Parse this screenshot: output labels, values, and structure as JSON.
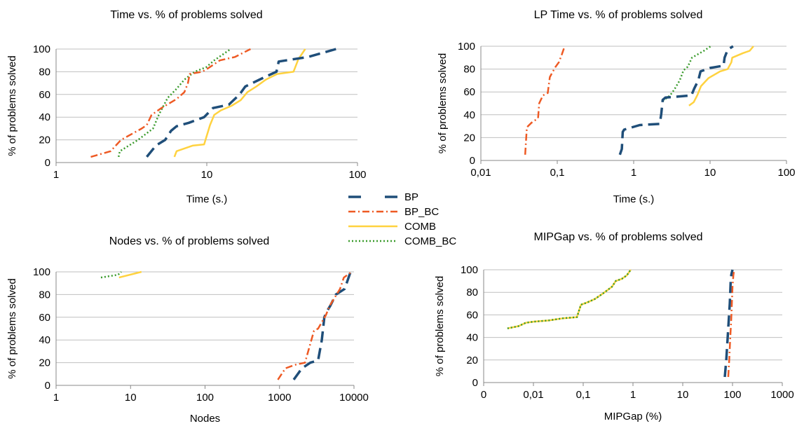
{
  "colors": {
    "BP": "#1f4e79",
    "BP_BC": "#ee5a24",
    "COMB": "#ffd23f",
    "COMB_BC": "#3a9b2c",
    "grid": "#bfbfbf"
  },
  "legend": {
    "placement": "center",
    "entries": [
      {
        "name": "BP",
        "color": "#1f4e79",
        "dash": "dash"
      },
      {
        "name": "BP_BC",
        "color": "#ee5a24",
        "dash": "dashdot"
      },
      {
        "name": "COMB",
        "color": "#ffd23f",
        "dash": "solid"
      },
      {
        "name": "COMB_BC",
        "color": "#3a9b2c",
        "dash": "dot"
      }
    ]
  },
  "chart_data": [
    {
      "type": "line",
      "title": "Time vs. % of problems solved",
      "xlabel": "Time (s.)",
      "ylabel": "% of problems solved",
      "xscale": "log",
      "xlim": [
        1,
        100
      ],
      "ylim": [
        0,
        100
      ],
      "grid": true,
      "xticks": [
        1,
        10,
        100
      ],
      "xtick_labels": [
        "1",
        "10",
        "100"
      ],
      "yticks": [
        0,
        20,
        40,
        60,
        80,
        100
      ],
      "ytick_labels": [
        "0",
        "20",
        "40",
        "60",
        "80",
        "100"
      ],
      "series": [
        {
          "name": "BP",
          "x": [
            4.0,
            4.6,
            5.3,
            5.8,
            6.3,
            7.6,
            9.6,
            11,
            14,
            16.5,
            18,
            24,
            29,
            30,
            47,
            72
          ],
          "y": [
            5,
            15,
            20,
            28,
            32,
            35,
            40,
            48,
            51,
            60,
            67,
            75,
            80,
            89,
            93,
            100
          ]
        },
        {
          "name": "BP_BC",
          "x": [
            1.7,
            2.3,
            2.7,
            3.7,
            4.0,
            4.3,
            5.0,
            6.3,
            7.1,
            7.5,
            7.7,
            9.3,
            10.2,
            12.2,
            15.4,
            19.5
          ],
          "y": [
            5,
            10,
            20,
            30,
            33,
            42,
            48,
            56,
            62,
            70,
            78,
            80,
            83,
            90,
            93,
            100
          ]
        },
        {
          "name": "COMB",
          "x": [
            6.1,
            6.3,
            8.1,
            9.6,
            10.5,
            11.2,
            12.4,
            14.6,
            16.8,
            18.6,
            21.3,
            24.6,
            29.3,
            37.6,
            40.5,
            45.0
          ],
          "y": [
            5,
            10,
            15,
            16,
            33,
            42,
            46,
            50,
            55,
            62,
            67,
            73,
            78,
            80,
            91,
            100
          ]
        },
        {
          "name": "COMB_BC",
          "x": [
            2.6,
            2.65,
            3.5,
            4.4,
            4.8,
            5.5,
            6.3,
            7.1,
            8.3,
            9.9,
            11.2,
            14.4
          ],
          "y": [
            5,
            10,
            20,
            30,
            42,
            57,
            65,
            73,
            80,
            84,
            90,
            100
          ]
        }
      ]
    },
    {
      "type": "line",
      "title": "LP Time vs. % of problems solved",
      "xlabel": "Time (s.)",
      "ylabel": "% of problems solved",
      "xscale": "log",
      "xlim": [
        0.01,
        100
      ],
      "ylim": [
        0,
        100
      ],
      "grid": true,
      "xticks": [
        0.01,
        0.1,
        1,
        10,
        100
      ],
      "xtick_labels": [
        "0,01",
        "0,1",
        "1",
        "10",
        "100"
      ],
      "yticks": [
        0,
        20,
        40,
        60,
        80,
        100
      ],
      "ytick_labels": [
        "0",
        "20",
        "40",
        "60",
        "80",
        "100"
      ],
      "series": [
        {
          "name": "BP",
          "x": [
            0.66,
            0.7,
            0.72,
            0.75,
            1.2,
            2.2,
            2.3,
            2.4,
            2.6,
            5.7,
            6.2,
            7.0,
            7.5,
            10.0,
            15.0,
            15.5,
            17.0,
            20.0
          ],
          "y": [
            5,
            10,
            25,
            27,
            31,
            32,
            41,
            53,
            55,
            57,
            63,
            70,
            78,
            81,
            83,
            90,
            97,
            100
          ]
        },
        {
          "name": "BP_BC",
          "x": [
            0.038,
            0.04,
            0.046,
            0.056,
            0.058,
            0.065,
            0.075,
            0.08,
            0.086,
            0.095,
            0.105,
            0.115,
            0.125
          ],
          "y": [
            5,
            29,
            33,
            37,
            50,
            57,
            59,
            73,
            77,
            82,
            86,
            93,
            100
          ]
        },
        {
          "name": "COMB",
          "x": [
            5.3,
            6.1,
            6.8,
            7.6,
            9.5,
            13.5,
            17.0,
            19.0,
            19.5,
            27.0,
            33.0,
            37.0
          ],
          "y": [
            48,
            51,
            57,
            65,
            72,
            78,
            80,
            86,
            90,
            94,
            96,
            100
          ]
        },
        {
          "name": "COMB_BC",
          "x": [
            2.4,
            3.0,
            3.4,
            4.0,
            4.5,
            5.1,
            5.8,
            8.3,
            10.2
          ],
          "y": [
            52,
            57,
            62,
            70,
            79,
            82,
            90,
            96,
            100
          ]
        }
      ]
    },
    {
      "type": "line",
      "title": "Nodes vs. % of problems solved",
      "xlabel": "Nodes",
      "ylabel": "% of problems solved",
      "xscale": "log",
      "xlim": [
        1,
        10000
      ],
      "ylim": [
        0,
        100
      ],
      "grid": true,
      "xticks": [
        1,
        10,
        100,
        1000,
        10000
      ],
      "xtick_labels": [
        "1",
        "10",
        "100",
        "1000",
        "10000"
      ],
      "yticks": [
        0,
        20,
        40,
        60,
        80,
        100
      ],
      "ytick_labels": [
        "0",
        "20",
        "40",
        "60",
        "80",
        "100"
      ],
      "series": [
        {
          "name": "BP",
          "x": [
            1550,
            2000,
            2600,
            3300,
            3700,
            4000,
            4300,
            4800,
            5700,
            7500,
            9000
          ],
          "y": [
            5,
            15,
            20,
            22,
            40,
            60,
            65,
            70,
            80,
            85,
            100
          ]
        },
        {
          "name": "BP_BC",
          "x": [
            950,
            1200,
            1600,
            2200,
            2900,
            3300,
            4200,
            4700,
            6500,
            7300,
            9300
          ],
          "y": [
            5,
            15,
            18,
            20,
            48,
            50,
            62,
            70,
            85,
            95,
            100
          ]
        },
        {
          "name": "COMB",
          "x": [
            7,
            14
          ],
          "y": [
            95,
            100
          ]
        },
        {
          "name": "COMB_BC",
          "x": [
            4,
            6.8,
            7.5
          ],
          "y": [
            95,
            97.5,
            100
          ]
        }
      ]
    },
    {
      "type": "line",
      "title": "MIPGap vs. % of problems solved",
      "xlabel": "MIPGap (%)",
      "ylabel": "% of problems solved",
      "xscale": "log",
      "xlim": [
        0.001,
        1000
      ],
      "ylim": [
        0,
        100
      ],
      "grid": true,
      "xticks": [
        0.001,
        0.01,
        0.1,
        1,
        10,
        100,
        1000
      ],
      "xtick_labels": [
        "0",
        "0,01",
        "0,1",
        "1",
        "10",
        "100",
        "1000"
      ],
      "yticks": [
        0,
        20,
        40,
        60,
        80,
        100
      ],
      "ytick_labels": [
        "0",
        "20",
        "40",
        "60",
        "80",
        "100"
      ],
      "series": [
        {
          "name": "BP",
          "x": [
            70,
            75,
            80,
            84,
            88,
            90,
            92,
            95,
            100
          ],
          "y": [
            5,
            20,
            40,
            55,
            70,
            80,
            90,
            96,
            100
          ]
        },
        {
          "name": "BP_BC",
          "x": [
            82,
            86,
            90,
            94,
            97,
            100,
            104,
            108
          ],
          "y": [
            5,
            20,
            40,
            55,
            70,
            85,
            95,
            100
          ]
        },
        {
          "name": "COMB",
          "x": [
            0.003,
            0.005,
            0.007,
            0.01,
            0.02,
            0.04,
            0.075,
            0.08,
            0.09,
            0.12,
            0.17,
            0.25,
            0.38,
            0.45,
            0.6,
            0.75,
            0.9
          ],
          "y": [
            48,
            50,
            53,
            54,
            55,
            57,
            58,
            62,
            69,
            71,
            74,
            79,
            85,
            90,
            92,
            95,
            100
          ]
        },
        {
          "name": "COMB_BC",
          "x": [
            0.003,
            0.005,
            0.007,
            0.01,
            0.02,
            0.04,
            0.075,
            0.08,
            0.09,
            0.12,
            0.17,
            0.25,
            0.38,
            0.45,
            0.6,
            0.75,
            0.9
          ],
          "y": [
            48,
            50,
            53,
            54,
            55,
            57,
            58,
            62,
            69,
            71,
            74,
            79,
            85,
            90,
            92,
            95,
            100
          ]
        }
      ]
    }
  ]
}
